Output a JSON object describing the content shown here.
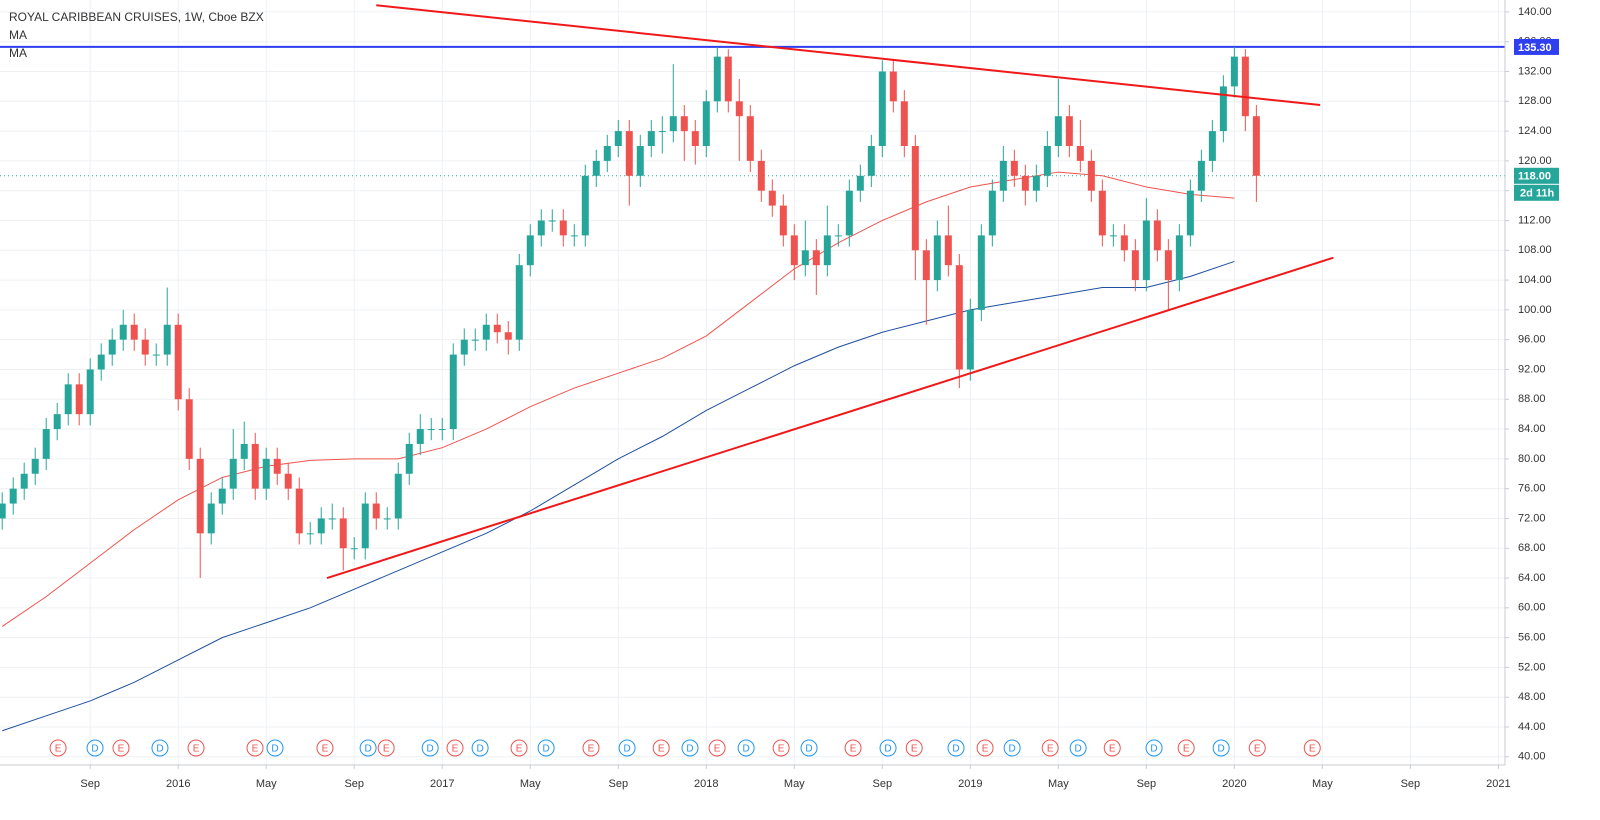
{
  "chart_data": {
    "type": "candlestick",
    "title": "ROYAL CARIBBEAN CRUISES, 1W, Cboe BZX",
    "xlim": [
      3.9,
      72.3
    ],
    "ylim": [
      38.9,
      141.6
    ],
    "grid": true,
    "up_color": "#26a69a",
    "down_color": "#ef5350",
    "xticks": [
      {
        "value": 8,
        "label": "Sep"
      },
      {
        "value": 12,
        "label": "2016"
      },
      {
        "value": 16,
        "label": "May"
      },
      {
        "value": 20,
        "label": "Sep"
      },
      {
        "value": 24,
        "label": "2017"
      },
      {
        "value": 28,
        "label": "May"
      },
      {
        "value": 32,
        "label": "Sep"
      },
      {
        "value": 36,
        "label": "2018"
      },
      {
        "value": 40,
        "label": "May"
      },
      {
        "value": 44,
        "label": "Sep"
      },
      {
        "value": 48,
        "label": "2019"
      },
      {
        "value": 52,
        "label": "May"
      },
      {
        "value": 56,
        "label": "Sep"
      },
      {
        "value": 60,
        "label": "2020"
      },
      {
        "value": 64,
        "label": "May"
      },
      {
        "value": 68,
        "label": "Sep"
      },
      {
        "value": 72,
        "label": "2021"
      }
    ],
    "yticks": [
      {
        "value": 40,
        "label": "40.00"
      },
      {
        "value": 44,
        "label": "44.00"
      },
      {
        "value": 48,
        "label": "48.00"
      },
      {
        "value": 52,
        "label": "52.00"
      },
      {
        "value": 56,
        "label": "56.00"
      },
      {
        "value": 60,
        "label": "60.00"
      },
      {
        "value": 64,
        "label": "64.00"
      },
      {
        "value": 68,
        "label": "68.00"
      },
      {
        "value": 72,
        "label": "72.00"
      },
      {
        "value": 76,
        "label": "76.00"
      },
      {
        "value": 80,
        "label": "80.00"
      },
      {
        "value": 84,
        "label": "84.00"
      },
      {
        "value": 88,
        "label": "88.00"
      },
      {
        "value": 92,
        "label": "92.00"
      },
      {
        "value": 96,
        "label": "96.00"
      },
      {
        "value": 100,
        "label": "100.00"
      },
      {
        "value": 104,
        "label": "104.00"
      },
      {
        "value": 108,
        "label": "108.00"
      },
      {
        "value": 112,
        "label": "112.00"
      },
      {
        "value": 116,
        "label": "116.00"
      },
      {
        "value": 120,
        "label": "120.00"
      },
      {
        "value": 124,
        "label": "124.00"
      },
      {
        "value": 128,
        "label": "128.00"
      },
      {
        "value": 132,
        "label": "132.00"
      },
      {
        "value": 136,
        "label": "136.00"
      },
      {
        "value": 140,
        "label": "140.00"
      }
    ],
    "x": [
      4,
      4.5,
      5,
      5.5,
      6,
      6.5,
      7,
      7.5,
      8,
      8.5,
      9,
      9.5,
      10,
      10.5,
      11,
      11.5,
      12,
      12.5,
      13,
      13.5,
      14,
      14.5,
      15,
      15.5,
      16,
      16.5,
      17,
      17.5,
      18,
      18.5,
      19,
      19.5,
      20,
      20.5,
      21,
      21.5,
      22,
      22.5,
      23,
      23.5,
      24,
      24.5,
      25,
      25.5,
      26,
      26.5,
      27,
      27.5,
      28,
      28.5,
      29,
      29.5,
      30,
      30.5,
      31,
      31.5,
      32,
      32.5,
      33,
      33.5,
      34,
      34.5,
      35,
      35.5,
      36,
      36.5,
      37,
      37.5,
      38,
      38.5,
      39,
      39.5,
      40,
      40.5,
      41,
      41.5,
      42,
      42.5,
      43,
      43.5,
      44,
      44.5,
      45,
      45.5,
      46,
      46.5,
      47,
      47.5,
      48,
      48.5,
      49,
      49.5,
      50,
      50.5,
      51,
      51.5,
      52,
      52.5,
      53,
      53.5,
      54,
      54.5,
      55,
      55.5,
      56,
      56.5,
      57,
      57.5,
      58,
      58.5,
      59,
      59.5,
      60,
      60.5,
      61
    ],
    "open": [
      72,
      74,
      76,
      78,
      80,
      84,
      86,
      90,
      86,
      92,
      94,
      96,
      98,
      96,
      94,
      94,
      98,
      88,
      80,
      70,
      74,
      76,
      80,
      82,
      76,
      80,
      78,
      76,
      70,
      70,
      72,
      72,
      68,
      68,
      74,
      72,
      72,
      78,
      82,
      84,
      84,
      84,
      94,
      96,
      96,
      98,
      97,
      96,
      106,
      110,
      112,
      112,
      110,
      110,
      118,
      120,
      122,
      124,
      118,
      122,
      124,
      124,
      126,
      124,
      122,
      128,
      134,
      128,
      126,
      120,
      116,
      114,
      110,
      106,
      108,
      106,
      110,
      110,
      116,
      118,
      122,
      132,
      128,
      122,
      108,
      104,
      110,
      106,
      92,
      100,
      110,
      116,
      120,
      118,
      116,
      118,
      122,
      126,
      122,
      120,
      116,
      110,
      110,
      108,
      104,
      112,
      108,
      104,
      110,
      116,
      120,
      124,
      130,
      134,
      126
    ],
    "high": [
      75.5,
      77.5,
      79.5,
      81.5,
      85.5,
      87.5,
      91.5,
      91.5,
      93.5,
      95.5,
      97.5,
      100,
      99.5,
      97.5,
      95.5,
      103,
      99.5,
      89.5,
      81.5,
      75.5,
      77.5,
      84,
      85,
      83.5,
      81.5,
      81.5,
      79.5,
      77.5,
      71.5,
      73.5,
      74,
      73.5,
      69.5,
      75.5,
      75.5,
      73.5,
      79.5,
      83.5,
      86,
      85.5,
      85.5,
      95.5,
      97.5,
      97.5,
      99.5,
      99.5,
      98.5,
      107.5,
      111.5,
      113.5,
      113.5,
      113.5,
      111.5,
      119.5,
      121.5,
      123.5,
      125.5,
      125.5,
      123.5,
      125.5,
      126,
      133,
      127.5,
      125.5,
      129.5,
      135.3,
      135,
      131,
      127.5,
      121.5,
      117.5,
      115.5,
      111.5,
      112,
      109.5,
      114,
      111.5,
      117.5,
      119.5,
      123.5,
      133.5,
      133.5,
      129.5,
      123.5,
      109.5,
      112,
      114,
      107.5,
      101.5,
      111.5,
      117.5,
      122,
      121.5,
      119.5,
      119.5,
      124,
      131,
      127.5,
      125.5,
      121.5,
      117.5,
      111.5,
      111.5,
      109.5,
      115,
      113.5,
      109.5,
      111.5,
      117.5,
      121.5,
      125.5,
      131.5,
      135.3,
      135,
      127.5
    ],
    "low": [
      70.5,
      72.5,
      74.5,
      76.5,
      78.5,
      82.5,
      84.5,
      84.5,
      84.5,
      90.5,
      92.5,
      94.5,
      94.5,
      92.5,
      92.5,
      92.5,
      86.5,
      78.5,
      64,
      68.5,
      72.5,
      74.5,
      78.5,
      74.5,
      74.5,
      76.5,
      74.5,
      68.5,
      68.5,
      68.5,
      70.5,
      65,
      66.5,
      66.5,
      70.5,
      70.5,
      70.5,
      76.5,
      80.5,
      82.5,
      82.5,
      82.5,
      92.5,
      94.5,
      94.5,
      95.5,
      94,
      94.5,
      104.5,
      108.5,
      110.5,
      108.5,
      108.5,
      108.5,
      116.5,
      118.5,
      120.5,
      114,
      116.5,
      120.5,
      121,
      122.5,
      120,
      119.5,
      120.5,
      126.5,
      126.5,
      120,
      118.5,
      114.5,
      112.5,
      108.5,
      104,
      104.5,
      102,
      104.5,
      108.5,
      108.5,
      114.5,
      116.5,
      120.5,
      126.5,
      120.5,
      104,
      98,
      102.5,
      104.5,
      89.5,
      90.5,
      98.5,
      108.5,
      114.5,
      116.5,
      114,
      114.5,
      116.5,
      120.5,
      120.5,
      118.5,
      114.5,
      108.5,
      108.5,
      106.5,
      102.5,
      102.5,
      106.5,
      100,
      102.5,
      108.5,
      114.5,
      118.5,
      122.5,
      128.5,
      124,
      114.5
    ],
    "close": [
      74,
      76,
      78,
      80,
      84,
      86,
      90,
      86,
      92,
      94,
      96,
      98,
      96,
      94,
      94,
      98,
      88,
      80,
      70,
      74,
      76,
      80,
      82,
      76,
      80,
      78,
      76,
      70,
      70,
      72,
      72,
      68,
      68,
      74,
      72,
      72,
      78,
      82,
      84,
      84,
      84,
      94,
      96,
      96,
      98,
      97,
      96,
      106,
      110,
      112,
      112,
      110,
      110,
      118,
      120,
      122,
      124,
      118,
      122,
      124,
      124,
      126,
      124,
      122,
      128,
      134,
      128,
      126,
      120,
      116,
      114,
      110,
      106,
      108,
      106,
      110,
      110,
      116,
      118,
      122,
      132,
      128,
      122,
      108,
      104,
      110,
      106,
      92,
      100,
      110,
      116,
      120,
      118,
      116,
      118,
      122,
      126,
      122,
      120,
      116,
      110,
      110,
      108,
      104,
      112,
      108,
      104,
      110,
      116,
      120,
      124,
      130,
      134,
      126,
      118
    ],
    "series": [
      {
        "name": "MA",
        "color": "#ef5350",
        "x": [
          4,
          6,
          8,
          10,
          12,
          14,
          16,
          18,
          20,
          22,
          24,
          26,
          28,
          30,
          32,
          34,
          36,
          38,
          40,
          42,
          44,
          46,
          48,
          50,
          52,
          54,
          56,
          58,
          60
        ],
        "values": [
          57.5,
          61.5,
          66,
          70.5,
          74.5,
          77.5,
          79,
          79.8,
          80,
          80,
          81.5,
          84,
          87,
          89.5,
          91.5,
          93.5,
          96.5,
          101,
          105.5,
          109,
          112,
          114.5,
          116.5,
          117.5,
          118.5,
          118,
          116.5,
          115.5,
          115
        ]
      },
      {
        "name": "MA",
        "color": "#1e4fa0",
        "x": [
          4,
          6,
          8,
          10,
          12,
          14,
          16,
          18,
          20,
          22,
          24,
          26,
          28,
          30,
          32,
          34,
          36,
          38,
          40,
          42,
          44,
          46,
          48,
          50,
          52,
          54,
          56,
          58,
          60
        ],
        "values": [
          43.5,
          45.5,
          47.5,
          50,
          53,
          56,
          58,
          60,
          62.5,
          65,
          67.5,
          70,
          73,
          76.5,
          80,
          83,
          86.5,
          89.5,
          92.5,
          95,
          97,
          98.5,
          100,
          101,
          102,
          103,
          103,
          104.5,
          106.5
        ]
      }
    ],
    "trendlines": [
      {
        "x": [
          21,
          63.9
        ],
        "y": [
          140.9,
          127.5
        ],
        "color": "#f01818"
      },
      {
        "x": [
          18.76,
          64.5
        ],
        "y": [
          64,
          107
        ],
        "color": "#f01818"
      }
    ],
    "price_tags": [
      {
        "value": 135.3,
        "label": "135.30",
        "color": "#2f3ff0"
      },
      {
        "value": 118,
        "label": "118.00",
        "color": "#26a69a",
        "countdown": "2d 11h"
      }
    ],
    "events": [
      {
        "x": 6.54,
        "label": "E"
      },
      {
        "x": 8.22,
        "label": "D"
      },
      {
        "x": 9.4,
        "label": "E"
      },
      {
        "x": 11.17,
        "label": "D"
      },
      {
        "x": 12.81,
        "label": "E"
      },
      {
        "x": 15.49,
        "label": "E"
      },
      {
        "x": 16.4,
        "label": "D"
      },
      {
        "x": 18.67,
        "label": "E"
      },
      {
        "x": 20.63,
        "label": "D"
      },
      {
        "x": 21.45,
        "label": "E"
      },
      {
        "x": 23.45,
        "label": "D"
      },
      {
        "x": 24.58,
        "label": "E"
      },
      {
        "x": 25.72,
        "label": "D"
      },
      {
        "x": 27.49,
        "label": "E"
      },
      {
        "x": 28.72,
        "label": "D"
      },
      {
        "x": 30.76,
        "label": "E"
      },
      {
        "x": 32.4,
        "label": "D"
      },
      {
        "x": 33.95,
        "label": "E"
      },
      {
        "x": 35.26,
        "label": "D"
      },
      {
        "x": 36.49,
        "label": "E"
      },
      {
        "x": 37.81,
        "label": "D"
      },
      {
        "x": 39.4,
        "label": "E"
      },
      {
        "x": 40.67,
        "label": "D"
      },
      {
        "x": 42.67,
        "label": "E"
      },
      {
        "x": 44.26,
        "label": "D"
      },
      {
        "x": 45.45,
        "label": "E"
      },
      {
        "x": 47.35,
        "label": "D"
      },
      {
        "x": 48.67,
        "label": "E"
      },
      {
        "x": 49.9,
        "label": "D"
      },
      {
        "x": 51.63,
        "label": "E"
      },
      {
        "x": 52.9,
        "label": "D"
      },
      {
        "x": 54.45,
        "label": "E"
      },
      {
        "x": 56.35,
        "label": "D"
      },
      {
        "x": 57.81,
        "label": "E"
      },
      {
        "x": 59.4,
        "label": "D"
      },
      {
        "x": 61.04,
        "label": "E"
      },
      {
        "x": 63.54,
        "label": "E"
      }
    ]
  }
}
